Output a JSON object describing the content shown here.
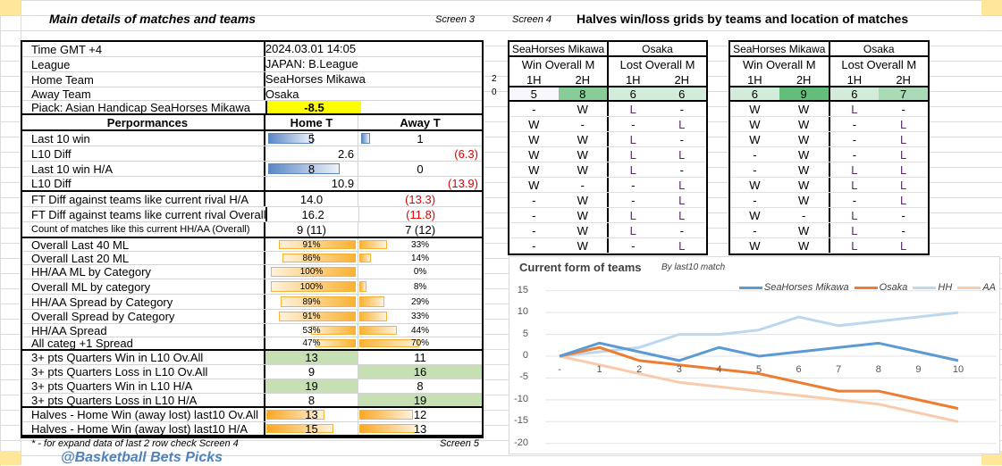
{
  "left": {
    "title": "Main details of matches and teams",
    "screen3": "Screen 3",
    "screen5": "Screen 5",
    "footnote": "* - for expand data of last 2 row check Screen 4",
    "watermark": "@Basketball  Bets  Picks",
    "side_numbers": [
      "2",
      "0"
    ],
    "info": [
      {
        "label": "Time  GMT +4",
        "value": "2024.03.01 14:05"
      },
      {
        "label": "League",
        "value": "JAPAN: B.League"
      },
      {
        "label": "Home Team",
        "value": "SeaHorses Mikawa"
      },
      {
        "label": "Away Team",
        "value": "Osaka"
      },
      {
        "label": "Piack: Asian Handicap SeaHorses Mikawa",
        "value": "-8.5"
      }
    ],
    "header": {
      "label": "Perpormances",
      "home": "Home T",
      "away": "Away T"
    },
    "rows": [
      {
        "label": "Last 10  win",
        "home": "5",
        "away": "1",
        "bar": "blue",
        "hv": 5,
        "av": 1
      },
      {
        "label": "L10 Diff",
        "home": "2.6",
        "away": "(6.3)",
        "align": "right"
      },
      {
        "label": "Last 10  win H/A",
        "home": "8",
        "away": "0",
        "bar": "blue",
        "hv": 8,
        "av": 0
      },
      {
        "label": "L10 Diff",
        "home": "10.9",
        "away": "(13.9)",
        "align": "right"
      },
      {
        "label": "FT Diff against teams like current rival H/A",
        "home": "14.0",
        "away": "(13.3)"
      },
      {
        "label": "FT Diff against teams like current rival Overall",
        "home": "16.2",
        "away": "(11.8)"
      },
      {
        "label": "Count of matches like this current  HH/AA (Overall)",
        "home": "9 (11)",
        "away": "7 (12)",
        "small": true
      },
      {
        "label": "Overall Last 40 ML",
        "home": "91%",
        "away": "33%",
        "bar": "pct",
        "hv": 91,
        "av": 33
      },
      {
        "label": "Overall Last 20 ML",
        "home": "86%",
        "away": "14%",
        "bar": "pct",
        "hv": 86,
        "av": 14
      },
      {
        "label": "HH/AA  ML by Category",
        "home": "100%",
        "away": "0%",
        "bar": "pct",
        "hv": 100,
        "av": 0
      },
      {
        "label": "Overall ML by category",
        "home": "100%",
        "away": "8%",
        "bar": "pct",
        "hv": 100,
        "av": 8
      },
      {
        "label": "HH/AA Spread by Category",
        "home": "89%",
        "away": "29%",
        "bar": "pct",
        "hv": 89,
        "av": 29
      },
      {
        "label": "Overall Spread by Category",
        "home": "91%",
        "away": "33%",
        "bar": "pct",
        "hv": 91,
        "av": 33
      },
      {
        "label": "HH/AA  Spread",
        "home": "53%",
        "away": "44%",
        "bar": "pct",
        "hv": 53,
        "av": 44
      },
      {
        "label": "All categ +1 Spread",
        "home": "47%",
        "away": "70%",
        "bar": "pct",
        "hv": 47,
        "av": 70
      },
      {
        "label": "3+ pts Quarters Win in L10 Ov.All",
        "home": "13",
        "away": "11",
        "hi": "home"
      },
      {
        "label": "3+ pts Quarters Loss in L10 Ov.All",
        "home": "9",
        "away": "16",
        "hi": "away"
      },
      {
        "label": "3+ pts Quarters Win in L10 H/A",
        "home": "19",
        "away": "8",
        "hi": "home"
      },
      {
        "label": "3+ pts Quarters Loss in L10 H/A",
        "home": "8",
        "away": "19",
        "hi": "away"
      },
      {
        "label": "Halves - Home Win  (away lost) last10 Ov.All",
        "home": "13",
        "away": "12",
        "bar": "half",
        "hv": 13,
        "av": 12
      },
      {
        "label": "Halves - Home Win  (away lost) last10 H/A",
        "home": "15",
        "away": "13",
        "bar": "half",
        "hv": 15,
        "av": 13
      }
    ]
  },
  "right": {
    "screen4": "Screen 4",
    "title": "Halves win/loss grids by teams and location of matches",
    "grids": [
      {
        "team1": "SeaHorses Mikawa",
        "team2": "Osaka",
        "sub1": "Win Overall M",
        "sub2": "Lost Overall M",
        "halves": [
          "1H",
          "2H",
          "1H",
          "2H"
        ],
        "totals": [
          "5",
          "8",
          "6",
          "6"
        ],
        "total_colors": [
          "#f8f8fc",
          "#88cc98",
          "#d2ecd9",
          "#d2ecd9"
        ],
        "rows": [
          [
            "-",
            "W",
            "L",
            "-"
          ],
          [
            "W",
            "-",
            "-",
            "L"
          ],
          [
            "W",
            "W",
            "L",
            "-"
          ],
          [
            "W",
            "W",
            "L",
            "L"
          ],
          [
            "W",
            "W",
            "L",
            "-"
          ],
          [
            "W",
            "-",
            "-",
            "L"
          ],
          [
            "-",
            "W",
            "-",
            "L"
          ],
          [
            "-",
            "W",
            "L",
            "L"
          ],
          [
            "-",
            "W",
            "L",
            "-"
          ],
          [
            "-",
            "W",
            "-",
            "L"
          ]
        ]
      },
      {
        "team1": "SeaHorses Mikawa",
        "team2": "Osaka",
        "sub1": "Win Overall M",
        "sub2": "Lost Overall M",
        "halves": [
          "1H",
          "2H",
          "1H",
          "2H"
        ],
        "totals": [
          "6",
          "9",
          "6",
          "7"
        ],
        "total_colors": [
          "#d2ecd9",
          "#63be7b",
          "#d2ecd9",
          "#a9dcb6"
        ],
        "rows": [
          [
            "W",
            "W",
            "L",
            "-"
          ],
          [
            "W",
            "W",
            "-",
            "L"
          ],
          [
            "W",
            "W",
            "-",
            "L"
          ],
          [
            "-",
            "W",
            "-",
            "L"
          ],
          [
            "-",
            "W",
            "L",
            "L"
          ],
          [
            "W",
            "W",
            "L",
            "L"
          ],
          [
            "-",
            "W",
            "-",
            "L"
          ],
          [
            "W",
            "-",
            "L",
            "-"
          ],
          [
            "-",
            "W",
            "L",
            "-"
          ],
          [
            "W",
            "W",
            "L",
            "L"
          ]
        ]
      }
    ]
  },
  "chart_data": {
    "type": "line",
    "title": "Current form of  teams",
    "subtitle": "By last10 match",
    "categories": [
      "-",
      "1",
      "2",
      "3",
      "4",
      "5",
      "6",
      "7",
      "8",
      "9",
      "10"
    ],
    "ylim": [
      -20,
      15
    ],
    "yticks": [
      15,
      10,
      5,
      0,
      -5,
      -10,
      -15,
      -20
    ],
    "legend": "top-right",
    "grid": true,
    "series": [
      {
        "name": "SeaHorses Mikawa",
        "color": "#5b9bd5",
        "values": [
          0,
          3,
          1,
          -1,
          2,
          0,
          1,
          2,
          3,
          1,
          -1
        ]
      },
      {
        "name": "Osaka",
        "color": "#ed7d31",
        "values": [
          0,
          2,
          -1,
          -2,
          -3,
          -4,
          -6,
          -8,
          -8,
          -10,
          -12
        ]
      },
      {
        "name": "HH",
        "color": "#bdd7ee",
        "values": [
          0,
          1,
          2,
          5,
          5,
          6,
          9,
          7,
          8,
          9,
          10
        ]
      },
      {
        "name": "AA",
        "color": "#f8cbad",
        "values": [
          0,
          -2,
          -4,
          -6,
          -7,
          -8,
          -9,
          -10,
          -11,
          -13,
          -15
        ]
      }
    ]
  }
}
